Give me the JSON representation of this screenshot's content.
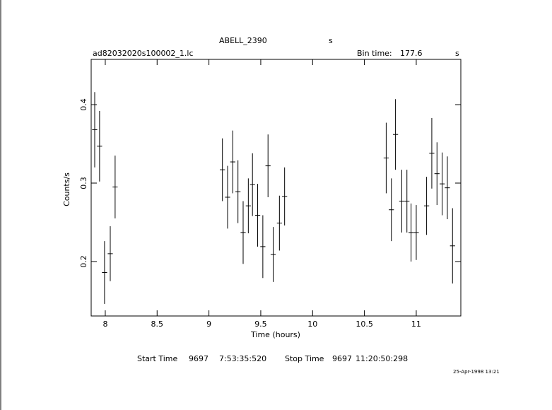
{
  "chart_data": {
    "type": "errorbar",
    "title": "ABELL_2390",
    "title_unit": "s",
    "file_name": "ad82032020s100002_1.lc",
    "bin_time_label": "Bin time:",
    "bin_time": 177.6,
    "bin_time_unit": "s",
    "xlabel": "Time (hours)",
    "ylabel": "Counts/s",
    "start_label": "Start Time",
    "start_day": "9697",
    "start_time": "7:53:35:520",
    "stop_label": "Stop Time",
    "stop_day": "9697",
    "stop_time": "11:20:50:298",
    "date_stamp": "25-Apr-1998 13:21",
    "xlim": [
      7.864,
      11.43
    ],
    "ylim": [
      0.1306,
      0.4577
    ],
    "xticks": [
      8,
      8.5,
      9,
      9.5,
      10,
      10.5,
      11
    ],
    "yticks": [
      0.2,
      0.3,
      0.4
    ],
    "color": "#000000",
    "xerr": 0.0247,
    "x": [
      7.898,
      7.945,
      7.993,
      8.048,
      8.095,
      9.13,
      9.18,
      9.23,
      9.28,
      9.33,
      9.38,
      9.42,
      9.47,
      9.52,
      9.57,
      9.62,
      9.68,
      9.73,
      10.71,
      10.76,
      10.8,
      10.86,
      10.91,
      10.95,
      11.0,
      11.1,
      11.15,
      11.2,
      11.25,
      11.3,
      11.35
    ],
    "values": [
      0.368,
      0.347,
      0.186,
      0.21,
      0.295,
      0.317,
      0.282,
      0.327,
      0.289,
      0.237,
      0.271,
      0.298,
      0.259,
      0.219,
      0.322,
      0.209,
      0.249,
      0.283,
      0.332,
      0.266,
      0.362,
      0.277,
      0.277,
      0.237,
      0.237,
      0.271,
      0.338,
      0.312,
      0.299,
      0.294,
      0.22
    ],
    "yerr": [
      0.048,
      0.045,
      0.04,
      0.035,
      0.04,
      0.04,
      0.04,
      0.04,
      0.04,
      0.04,
      0.035,
      0.04,
      0.04,
      0.04,
      0.04,
      0.035,
      0.035,
      0.037,
      0.045,
      0.04,
      0.045,
      0.04,
      0.04,
      0.037,
      0.035,
      0.037,
      0.045,
      0.04,
      0.04,
      0.04,
      0.048
    ]
  }
}
